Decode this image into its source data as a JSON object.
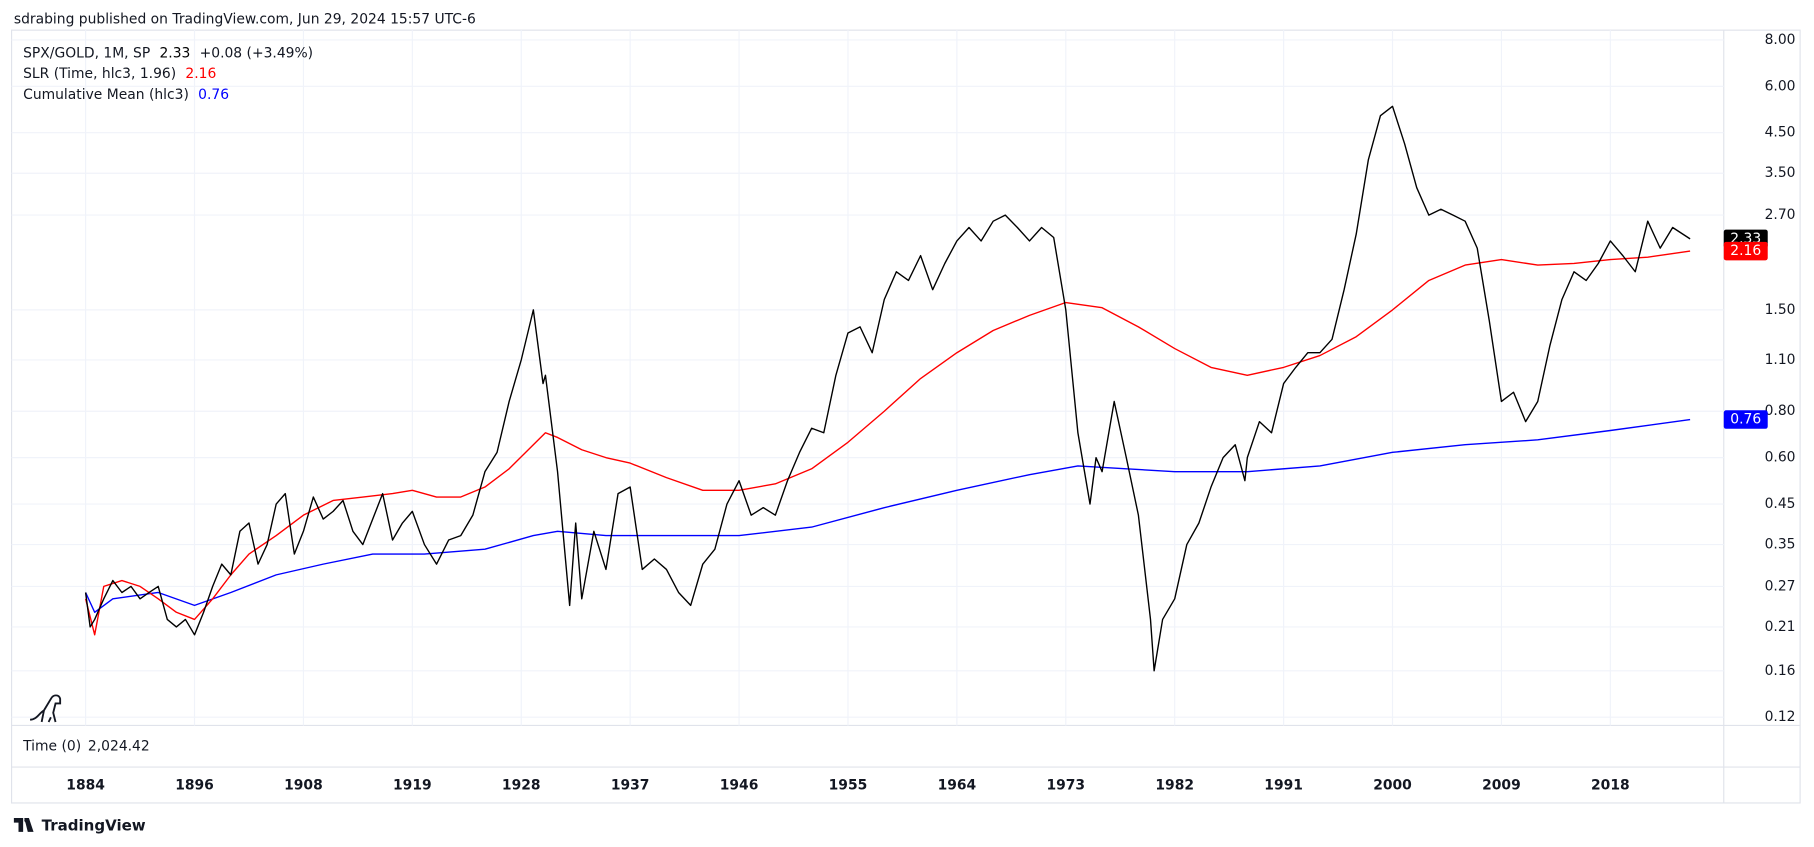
{
  "header": "sdrabing published on TradingView.com, Jun 29, 2024 15:57 UTC-6",
  "footer_brand": "TradingView",
  "chart_data": {
    "type": "line",
    "log_scale": true,
    "grid": true,
    "series": [
      {
        "name": "SPX/GOLD, 1M, SP",
        "color": "#000000",
        "last": 2.33,
        "change_label": "+0.08 (+3.49%)",
        "x": [
          1884,
          1884.5,
          1885,
          1886,
          1887,
          1888,
          1889,
          1890,
          1891,
          1892,
          1893,
          1894,
          1895,
          1896,
          1897,
          1898,
          1899,
          1900,
          1901,
          1902,
          1903,
          1904,
          1905,
          1906,
          1907,
          1908,
          1909,
          1910,
          1911,
          1912,
          1913,
          1914,
          1915,
          1916,
          1917,
          1918,
          1919,
          1920,
          1921,
          1922,
          1923,
          1924,
          1925,
          1926,
          1927,
          1928,
          1929,
          1929.8,
          1930,
          1931,
          1932,
          1932.5,
          1933,
          1934,
          1935,
          1936,
          1937,
          1938,
          1939,
          1940,
          1941,
          1942,
          1943,
          1944,
          1945,
          1946,
          1947,
          1948,
          1949,
          1950,
          1951,
          1952,
          1953,
          1954,
          1955,
          1956,
          1957,
          1958,
          1959,
          1960,
          1961,
          1962,
          1963,
          1964,
          1965,
          1966,
          1967,
          1968,
          1969,
          1970,
          1971,
          1972,
          1973,
          1974,
          1975,
          1975.5,
          1976,
          1977,
          1978,
          1979,
          1980,
          1980.3,
          1981,
          1982,
          1983,
          1984,
          1985,
          1986,
          1987,
          1987.8,
          1988,
          1989,
          1990,
          1991,
          1992,
          1993,
          1994,
          1995,
          1996,
          1997,
          1998,
          1999,
          2000,
          2001,
          2002,
          2003,
          2004,
          2005,
          2006,
          2007,
          2008,
          2009,
          2010,
          2011,
          2012,
          2013,
          2014,
          2015,
          2016,
          2017,
          2018,
          2019,
          2020,
          2021,
          2022,
          2023,
          2024.4
        ],
        "values": [
          0.26,
          0.21,
          0.22,
          0.25,
          0.28,
          0.26,
          0.27,
          0.25,
          0.26,
          0.27,
          0.22,
          0.21,
          0.22,
          0.2,
          0.23,
          0.27,
          0.31,
          0.29,
          0.38,
          0.4,
          0.31,
          0.35,
          0.45,
          0.48,
          0.33,
          0.38,
          0.47,
          0.41,
          0.43,
          0.46,
          0.38,
          0.35,
          0.41,
          0.48,
          0.36,
          0.4,
          0.43,
          0.35,
          0.31,
          0.36,
          0.37,
          0.42,
          0.55,
          0.62,
          0.85,
          1.1,
          1.5,
          0.95,
          1.0,
          0.55,
          0.24,
          0.4,
          0.25,
          0.38,
          0.3,
          0.48,
          0.5,
          0.3,
          0.32,
          0.3,
          0.26,
          0.24,
          0.31,
          0.34,
          0.45,
          0.52,
          0.42,
          0.44,
          0.42,
          0.52,
          0.62,
          0.72,
          0.7,
          1.0,
          1.3,
          1.35,
          1.15,
          1.6,
          1.9,
          1.8,
          2.1,
          1.7,
          2.0,
          2.3,
          2.5,
          2.3,
          2.6,
          2.7,
          2.5,
          2.3,
          2.5,
          2.35,
          1.5,
          0.7,
          0.45,
          0.6,
          0.55,
          0.85,
          0.6,
          0.42,
          0.22,
          0.16,
          0.22,
          0.25,
          0.35,
          0.4,
          0.5,
          0.6,
          0.65,
          0.52,
          0.6,
          0.75,
          0.7,
          0.95,
          1.05,
          1.15,
          1.15,
          1.25,
          1.7,
          2.4,
          3.8,
          5.0,
          5.3,
          4.2,
          3.2,
          2.7,
          2.8,
          2.7,
          2.6,
          2.2,
          1.4,
          0.85,
          0.9,
          0.75,
          0.85,
          1.2,
          1.6,
          1.9,
          1.8,
          2.0,
          2.3,
          2.1,
          1.9,
          2.6,
          2.2,
          2.5,
          2.33
        ]
      },
      {
        "name": "SLR (Time, hlc3, 1.96)",
        "color": "#ff0000",
        "last": 2.16,
        "x": [
          1884,
          1885,
          1886,
          1888,
          1890,
          1892,
          1894,
          1896,
          1898,
          1900,
          1902,
          1905,
          1908,
          1911,
          1914,
          1917,
          1919,
          1921,
          1923,
          1925,
          1927,
          1929,
          1930,
          1931,
          1933,
          1935,
          1937,
          1940,
          1943,
          1946,
          1949,
          1952,
          1955,
          1958,
          1961,
          1964,
          1967,
          1970,
          1973,
          1976,
          1979,
          1982,
          1985,
          1988,
          1991,
          1994,
          1997,
          2000,
          2003,
          2006,
          2009,
          2012,
          2015,
          2018,
          2021,
          2024.4
        ],
        "values": [
          0.25,
          0.2,
          0.27,
          0.28,
          0.27,
          0.25,
          0.23,
          0.22,
          0.25,
          0.29,
          0.33,
          0.37,
          0.42,
          0.46,
          0.47,
          0.48,
          0.49,
          0.47,
          0.47,
          0.5,
          0.56,
          0.65,
          0.7,
          0.68,
          0.63,
          0.6,
          0.58,
          0.53,
          0.49,
          0.49,
          0.51,
          0.56,
          0.66,
          0.8,
          0.98,
          1.15,
          1.32,
          1.45,
          1.57,
          1.52,
          1.35,
          1.18,
          1.05,
          1.0,
          1.05,
          1.13,
          1.27,
          1.5,
          1.8,
          1.98,
          2.05,
          1.98,
          2.0,
          2.05,
          2.08,
          2.16
        ]
      },
      {
        "name": "Cumulative Mean (hlc3)",
        "color": "#0000ff",
        "last": 0.76,
        "x": [
          1884,
          1885,
          1887,
          1892,
          1896,
          1900,
          1905,
          1910,
          1915,
          1920,
          1925,
          1929,
          1931,
          1935,
          1940,
          1946,
          1952,
          1958,
          1964,
          1970,
          1974,
          1978,
          1982,
          1988,
          1994,
          2000,
          2006,
          2012,
          2018,
          2024.4
        ],
        "values": [
          0.26,
          0.23,
          0.25,
          0.26,
          0.24,
          0.26,
          0.29,
          0.31,
          0.33,
          0.33,
          0.34,
          0.37,
          0.38,
          0.37,
          0.37,
          0.37,
          0.39,
          0.44,
          0.49,
          0.54,
          0.57,
          0.56,
          0.55,
          0.55,
          0.57,
          0.62,
          0.65,
          0.67,
          0.71,
          0.76
        ]
      }
    ],
    "ylim": [
      0.114,
      8.5
    ],
    "yticks": [
      {
        "value": 0.12,
        "label": "0.12"
      },
      {
        "value": 0.16,
        "label": "0.16"
      },
      {
        "value": 0.21,
        "label": "0.21"
      },
      {
        "value": 0.27,
        "label": "0.27"
      },
      {
        "value": 0.35,
        "label": "0.35"
      },
      {
        "value": 0.45,
        "label": "0.45"
      },
      {
        "value": 0.6,
        "label": "0.60"
      },
      {
        "value": 0.8,
        "label": "0.80"
      },
      {
        "value": 1.1,
        "label": "1.10"
      },
      {
        "value": 1.5,
        "label": "1.50"
      },
      {
        "value": 2.7,
        "label": "2.70"
      },
      {
        "value": 3.5,
        "label": "3.50"
      },
      {
        "value": 4.5,
        "label": "4.50"
      },
      {
        "value": 6,
        "label": "6.00"
      },
      {
        "value": 8,
        "label": "8.00"
      }
    ],
    "xlim": [
      1876,
      2027.1
    ],
    "xticks": [
      1884,
      1896,
      1908,
      1919,
      1928,
      1937,
      1946,
      1955,
      1964,
      1973,
      1982,
      1991,
      2000,
      2009,
      2018
    ],
    "time_pane_label": "Time (0)",
    "time_pane_value": "2,024.42"
  }
}
